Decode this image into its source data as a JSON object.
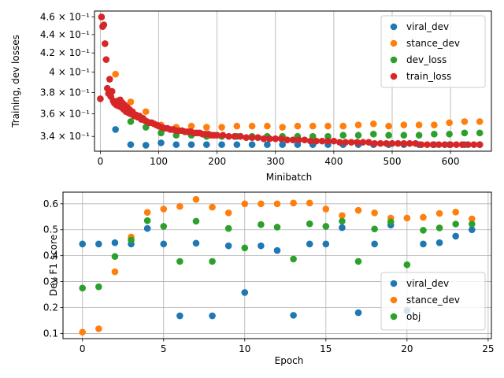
{
  "chart_data": [
    {
      "type": "scatter",
      "xlabel": "Minibatch",
      "ylabel": "Training, dev losses",
      "yscale": "log",
      "xlim": [
        -10,
        670
      ],
      "ylim": [
        0.3275,
        0.467
      ],
      "grid": "vertical",
      "legend_position": "top-right",
      "xticks": [
        0,
        100,
        200,
        300,
        400,
        500,
        600
      ],
      "yticks": [
        {
          "value": 0.34,
          "label": "3.4 × 10⁻¹"
        },
        {
          "value": 0.36,
          "label": "3.6 × 10⁻¹"
        },
        {
          "value": 0.38,
          "label": "3.8 × 10⁻¹"
        },
        {
          "value": 0.4,
          "label": "4 × 10⁻¹"
        },
        {
          "value": 0.42,
          "label": "4.2 × 10⁻¹"
        },
        {
          "value": 0.44,
          "label": "4.4 × 10⁻¹"
        },
        {
          "value": 0.46,
          "label": "4.6 × 10⁻¹"
        }
      ],
      "series": [
        {
          "name": "viral_dev",
          "color": "#1f77b4",
          "x": [
            26,
            52,
            78,
            104,
            130,
            156,
            182,
            208,
            234,
            260,
            286,
            312,
            338,
            364,
            390,
            416,
            442,
            468,
            494,
            520,
            546,
            572,
            598,
            624,
            650
          ],
          "y": [
            0.346,
            0.333,
            0.3325,
            0.3345,
            0.333,
            0.333,
            0.333,
            0.333,
            0.333,
            0.333,
            0.333,
            0.333,
            0.333,
            0.333,
            0.333,
            0.333,
            0.333,
            0.333,
            0.333,
            0.333,
            0.333,
            0.333,
            0.333,
            0.333,
            0.333
          ]
        },
        {
          "name": "stance_dev",
          "color": "#ff7f0e",
          "x": [
            26,
            52,
            78,
            104,
            130,
            156,
            182,
            208,
            234,
            260,
            286,
            312,
            338,
            364,
            390,
            416,
            442,
            468,
            494,
            520,
            546,
            572,
            598,
            624,
            650
          ],
          "y": [
            0.398,
            0.371,
            0.362,
            0.35,
            0.348,
            0.349,
            0.348,
            0.348,
            0.349,
            0.349,
            0.349,
            0.348,
            0.349,
            0.349,
            0.349,
            0.349,
            0.35,
            0.351,
            0.349,
            0.35,
            0.35,
            0.35,
            0.352,
            0.353,
            0.353
          ]
        },
        {
          "name": "dev_loss",
          "color": "#2ca02c",
          "x": [
            26,
            52,
            78,
            104,
            130,
            156,
            182,
            208,
            234,
            260,
            286,
            312,
            338,
            364,
            390,
            416,
            442,
            468,
            494,
            520,
            546,
            572,
            598,
            624,
            650
          ],
          "y": [
            0.371,
            0.353,
            0.348,
            0.343,
            0.341,
            0.341,
            0.34,
            0.34,
            0.34,
            0.34,
            0.34,
            0.34,
            0.34,
            0.34,
            0.34,
            0.341,
            0.341,
            0.342,
            0.341,
            0.341,
            0.341,
            0.342,
            0.342,
            0.343,
            0.343
          ]
        },
        {
          "name": "train_loss",
          "color": "#d62728",
          "x": [
            0,
            2,
            4,
            6,
            8,
            10,
            12,
            14,
            16,
            18,
            20,
            22,
            24,
            26,
            28,
            30,
            32,
            34,
            36,
            38,
            40,
            42,
            44,
            46,
            48,
            50,
            52,
            55,
            58,
            61,
            64,
            67,
            70,
            73,
            76,
            80,
            84,
            88,
            92,
            96,
            100,
            105,
            110,
            115,
            120,
            125,
            130,
            135,
            140,
            145,
            150,
            155,
            160,
            165,
            170,
            175,
            180,
            185,
            190,
            195,
            200,
            210,
            220,
            230,
            240,
            250,
            260,
            270,
            280,
            290,
            300,
            310,
            320,
            330,
            340,
            350,
            360,
            370,
            380,
            390,
            400,
            410,
            420,
            430,
            440,
            450,
            460,
            470,
            480,
            490,
            500,
            510,
            520,
            530,
            540,
            550,
            560,
            570,
            580,
            590,
            600,
            610,
            620,
            630,
            640,
            650
          ],
          "y": [
            0.374,
            0.46,
            0.449,
            0.451,
            0.43,
            0.413,
            0.384,
            0.379,
            0.393,
            0.376,
            0.381,
            0.372,
            0.37,
            0.369,
            0.368,
            0.372,
            0.367,
            0.373,
            0.366,
            0.37,
            0.364,
            0.368,
            0.362,
            0.366,
            0.361,
            0.364,
            0.36,
            0.362,
            0.358,
            0.359,
            0.357,
            0.358,
            0.355,
            0.356,
            0.354,
            0.353,
            0.352,
            0.352,
            0.351,
            0.35,
            0.349,
            0.348,
            0.347,
            0.347,
            0.346,
            0.346,
            0.345,
            0.345,
            0.345,
            0.344,
            0.344,
            0.344,
            0.343,
            0.343,
            0.343,
            0.342,
            0.342,
            0.342,
            0.341,
            0.341,
            0.341,
            0.341,
            0.34,
            0.34,
            0.34,
            0.339,
            0.339,
            0.339,
            0.338,
            0.338,
            0.338,
            0.338,
            0.337,
            0.337,
            0.337,
            0.337,
            0.336,
            0.336,
            0.336,
            0.336,
            0.336,
            0.335,
            0.335,
            0.335,
            0.335,
            0.335,
            0.335,
            0.334,
            0.334,
            0.334,
            0.334,
            0.334,
            0.334,
            0.334,
            0.334,
            0.333,
            0.333,
            0.333,
            0.333,
            0.333,
            0.333,
            0.333,
            0.333,
            0.333,
            0.333,
            0.333
          ]
        }
      ]
    },
    {
      "type": "scatter",
      "xlabel": "Epoch",
      "ylabel": "Dev F1 score",
      "xlim": [
        -1.2,
        25.2
      ],
      "ylim": [
        0.08,
        0.645
      ],
      "grid": "both",
      "legend_position": "bottom-right",
      "xticks": [
        0,
        5,
        10,
        15,
        20,
        25
      ],
      "yticks": [
        0.1,
        0.2,
        0.3,
        0.4,
        0.5,
        0.6
      ],
      "series": [
        {
          "name": "viral_dev",
          "color": "#1f77b4",
          "x": [
            0,
            1,
            2,
            3,
            4,
            5,
            6,
            7,
            8,
            9,
            10,
            11,
            12,
            13,
            14,
            15,
            16,
            17,
            18,
            19,
            20,
            21,
            22,
            23,
            24
          ],
          "y": [
            0.445,
            0.445,
            0.45,
            0.445,
            0.505,
            0.445,
            0.168,
            0.448,
            0.168,
            0.438,
            0.258,
            0.438,
            0.42,
            0.17,
            0.445,
            0.445,
            0.508,
            0.18,
            0.445,
            0.518,
            0.188,
            0.445,
            0.45,
            0.475,
            0.5
          ]
        },
        {
          "name": "stance_dev",
          "color": "#ff7f0e",
          "x": [
            0,
            1,
            2,
            3,
            4,
            5,
            6,
            7,
            8,
            9,
            10,
            11,
            12,
            13,
            14,
            15,
            16,
            17,
            18,
            19,
            20,
            21,
            22,
            23,
            24
          ],
          "y": [
            0.105,
            0.118,
            0.338,
            0.472,
            0.567,
            0.58,
            0.59,
            0.617,
            0.587,
            0.565,
            0.6,
            0.6,
            0.6,
            0.603,
            0.603,
            0.58,
            0.555,
            0.575,
            0.565,
            0.545,
            0.545,
            0.548,
            0.563,
            0.568,
            0.542
          ]
        },
        {
          "name": "obj",
          "color": "#2ca02c",
          "x": [
            0,
            1,
            2,
            3,
            4,
            5,
            6,
            7,
            8,
            9,
            10,
            11,
            12,
            13,
            14,
            15,
            16,
            17,
            18,
            19,
            20,
            21,
            22,
            23,
            24
          ],
          "y": [
            0.275,
            0.28,
            0.397,
            0.46,
            0.535,
            0.513,
            0.378,
            0.533,
            0.378,
            0.505,
            0.43,
            0.52,
            0.51,
            0.387,
            0.523,
            0.513,
            0.533,
            0.378,
            0.503,
            0.53,
            0.365,
            0.498,
            0.507,
            0.522,
            0.522
          ]
        }
      ]
    }
  ]
}
